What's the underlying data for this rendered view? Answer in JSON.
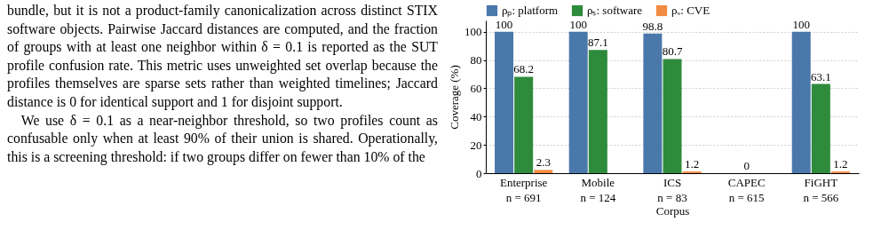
{
  "chart_data": {
    "type": "bar",
    "categories": [
      "Enterprise\nn = 691",
      "Mobile\nn = 124",
      "ICS\nn = 83",
      "CAPEC\nn = 615",
      "FiGHT\nn = 566"
    ],
    "series": [
      {
        "name": "ρₚ: platform",
        "color": "#4a78ab",
        "values": [
          100,
          100,
          98.8,
          0,
          100
        ],
        "value_labels": [
          "100",
          "100",
          "98.8",
          null,
          "100"
        ]
      },
      {
        "name": "ρₛ: software",
        "color": "#2e8b3c",
        "values": [
          68.2,
          87.1,
          80.7,
          0,
          63.1
        ],
        "value_labels": [
          "68.2",
          "87.1",
          "80.7",
          "0",
          "63.1"
        ]
      },
      {
        "name": "ρᵥ: CVE",
        "color": "#f28b42",
        "values": [
          2.3,
          0,
          1.2,
          0,
          1.2
        ],
        "value_labels": [
          "2.3",
          null,
          "1.2",
          null,
          "1.2"
        ]
      }
    ],
    "xlabel": "Corpus",
    "ylabel": "Coverage (%)",
    "ylim": [
      0,
      108
    ],
    "yticks": [
      0,
      20,
      40,
      60,
      80,
      100
    ],
    "grid": "y",
    "legend": "top",
    "annotations": [
      "bundle, but it is not a product-family canonicalization across distinct STIX software objects. Pairwise Jaccard distances are computed, and the fraction of groups with at least one neighbor within δ = 0.1 is reported as the SUT profile confusion rate. This metric uses unweighted set overlap because the profiles themselves are sparse sets rather than weighted timelines; Jaccard distance is 0 for identical support and 1 for disjoint support.",
      "We use δ = 0.1 as a near-neighbor threshold, so two profiles count as confusable only when at least 90% of their union is shared. Operationally, this is a screening threshold: if two groups differ on fewer than 10% of the"
    ]
  }
}
